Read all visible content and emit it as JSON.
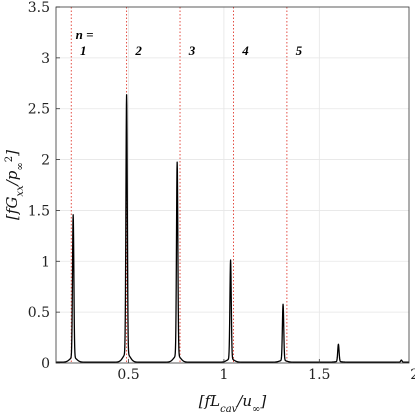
{
  "chart_data": {
    "type": "line",
    "title": "",
    "xlabel": "[fL_cav/u_∞]",
    "ylabel": "[fG_xx/p_∞²]",
    "xlim": [
      0.12,
      1.97
    ],
    "ylim": [
      0,
      3.5
    ],
    "xticks": [
      {
        "value": 0.5,
        "label": "0.5"
      },
      {
        "value": 1.0,
        "label": "1"
      },
      {
        "value": 1.5,
        "label": "1.5"
      },
      {
        "value": 2.0,
        "label": "2"
      }
    ],
    "yticks": [
      {
        "value": 0,
        "label": "0"
      },
      {
        "value": 0.5,
        "label": "0.5"
      },
      {
        "value": 1.0,
        "label": "1"
      },
      {
        "value": 1.5,
        "label": "1.5"
      },
      {
        "value": 2.0,
        "label": "2"
      },
      {
        "value": 2.5,
        "label": "2.5"
      },
      {
        "value": 3.0,
        "label": "3"
      },
      {
        "value": 3.5,
        "label": "3.5"
      }
    ],
    "grid": true,
    "series": [
      {
        "color": "#000000",
        "peaks": [
          {
            "x": 0.21,
            "y": 1.4
          },
          {
            "x": 0.49,
            "y": 2.54
          },
          {
            "x": 0.755,
            "y": 1.9
          },
          {
            "x": 1.035,
            "y": 0.97
          },
          {
            "x": 1.31,
            "y": 0.55
          },
          {
            "x": 1.6,
            "y": 0.17
          },
          {
            "x": 1.93,
            "y": 0.02
          }
        ]
      }
    ],
    "reference_lines": {
      "color": "#e03c31",
      "style": "dotted",
      "x": [
        0.2,
        0.49,
        0.77,
        1.05,
        1.33
      ]
    },
    "annotations": {
      "header": "n =",
      "labels": [
        "1",
        "2",
        "3",
        "4",
        "5"
      ]
    }
  }
}
